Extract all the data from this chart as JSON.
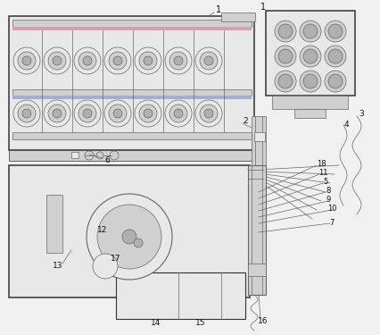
{
  "bg_color": "#f0f0f0",
  "line_color": "#666666",
  "border_color": "#444444",
  "dark_color": "#333333",
  "text_color": "#111111",
  "fc_light": "#e8e8e8",
  "fc_mid": "#d0d0d0",
  "fc_dark": "#b0b0b0"
}
